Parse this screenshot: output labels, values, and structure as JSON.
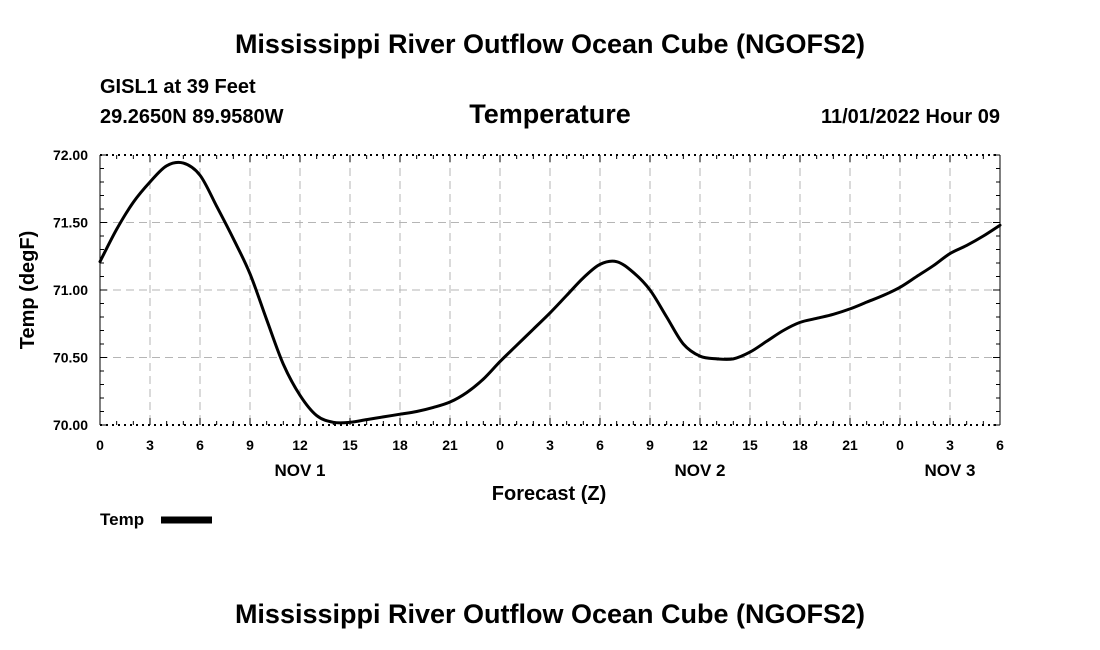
{
  "header": {
    "title": "Mississippi River Outflow Ocean Cube (NGOFS2)",
    "station": "GISL1 at 39 Feet",
    "coords": "29.2650N  89.9580W",
    "variable_title": "Temperature",
    "forecast_time": "11/01/2022 Hour 09"
  },
  "footer": {
    "title": "Mississippi River Outflow Ocean Cube (NGOFS2)"
  },
  "chart_data": {
    "type": "line",
    "title": "Temperature",
    "xlabel": "Forecast (Z)",
    "ylabel": "Temp (degF)",
    "ylim": [
      70.0,
      72.0
    ],
    "xlim": [
      0,
      54
    ],
    "y_ticks": [
      "70.00",
      "70.50",
      "71.00",
      "71.50",
      "72.00"
    ],
    "y_tick_values": [
      70.0,
      70.5,
      71.0,
      71.5,
      72.0
    ],
    "x_ticks": [
      "0",
      "3",
      "6",
      "9",
      "12",
      "15",
      "18",
      "21",
      "0",
      "3",
      "6",
      "9",
      "12",
      "15",
      "18",
      "21",
      "0",
      "3",
      "6"
    ],
    "day_labels": [
      {
        "label": "NOV 1",
        "hour": 12
      },
      {
        "label": "NOV 2",
        "hour": 36
      },
      {
        "label": "NOV 3",
        "hour": 51
      }
    ],
    "grid": true,
    "legend": {
      "label": "Temp",
      "position": "bottom-left"
    },
    "series": [
      {
        "name": "Temp",
        "color": "#000000",
        "x": [
          0,
          1,
          2,
          3,
          4,
          5,
          6,
          7,
          8,
          9,
          10,
          11,
          12,
          13,
          14,
          15,
          16,
          17,
          18,
          19,
          20,
          21,
          22,
          23,
          24,
          25,
          26,
          27,
          28,
          29,
          30,
          31,
          32,
          33,
          34,
          35,
          36,
          37,
          38,
          39,
          40,
          41,
          42,
          43,
          44,
          45,
          46,
          47,
          48,
          49,
          50,
          51,
          52,
          53,
          54
        ],
        "values": [
          71.21,
          71.45,
          71.65,
          71.8,
          71.92,
          71.94,
          71.85,
          71.62,
          71.38,
          71.12,
          70.78,
          70.45,
          70.22,
          70.07,
          70.02,
          70.02,
          70.04,
          70.06,
          70.08,
          70.1,
          70.13,
          70.17,
          70.24,
          70.34,
          70.47,
          70.59,
          70.71,
          70.83,
          70.96,
          71.09,
          71.19,
          71.21,
          71.13,
          71.0,
          70.8,
          70.6,
          70.51,
          70.49,
          70.49,
          70.54,
          70.62,
          70.7,
          70.76,
          70.79,
          70.82,
          70.86,
          70.91,
          70.96,
          71.02,
          71.1,
          71.18,
          71.27,
          71.33,
          71.4,
          71.48
        ]
      }
    ]
  }
}
